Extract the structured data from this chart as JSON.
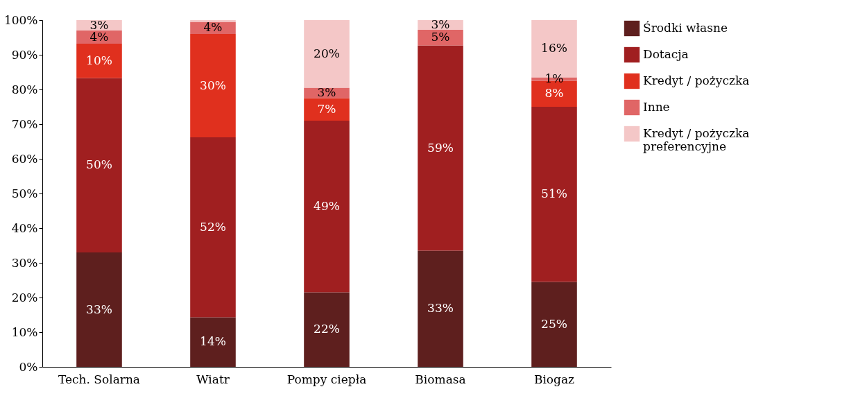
{
  "chart_data": {
    "type": "bar",
    "stacked": true,
    "categories": [
      "Tech. Solarna",
      "Wiatr",
      "Pompy ciepła",
      "Biomasa",
      "Biogaz"
    ],
    "series": [
      {
        "name": "Środki własne",
        "color": "#5e1f1e",
        "values": [
          33,
          14.3,
          21.5,
          33.5,
          24.5
        ],
        "value_labels": [
          "33%",
          "14%",
          "22%",
          "33%",
          "25%"
        ]
      },
      {
        "name": "Dotacja",
        "color": "#a01f20",
        "values": [
          50.3,
          51.9,
          49.5,
          59.2,
          50.5
        ],
        "value_labels": [
          "50%",
          "52%",
          "49%",
          "59%",
          "51%"
        ]
      },
      {
        "name": "Kredyt / pożyczka",
        "color": "#e0301e",
        "values": [
          9.9,
          29.8,
          6.5,
          0,
          7.5
        ],
        "value_labels": [
          "10%",
          "30%",
          "7%",
          null,
          "8%"
        ]
      },
      {
        "name": "Inne",
        "color": "#e06666",
        "values": [
          3.8,
          3.5,
          3,
          4.5,
          1
        ],
        "value_labels": [
          "4%",
          "4%",
          "3%",
          "5%",
          "1%"
        ]
      },
      {
        "name": "Kredyt / pożyczka preferencyjne",
        "color": "#f4c7c7",
        "values": [
          3,
          0.5,
          19.5,
          2.8,
          16.5
        ],
        "value_labels": [
          "3%",
          null,
          "20%",
          "3%",
          "16%"
        ]
      }
    ],
    "ylim": [
      0,
      100
    ],
    "yticks": [
      {
        "value": 0,
        "label": "0%"
      },
      {
        "value": 10,
        "label": "10%"
      },
      {
        "value": 20,
        "label": "20%"
      },
      {
        "value": 30,
        "label": "30%"
      },
      {
        "value": 40,
        "label": "40%"
      },
      {
        "value": 50,
        "label": "50%"
      },
      {
        "value": 60,
        "label": "60%"
      },
      {
        "value": 70,
        "label": "70%"
      },
      {
        "value": 80,
        "label": "80%"
      },
      {
        "value": 90,
        "label": "90%"
      },
      {
        "value": 100,
        "label": "100%"
      }
    ],
    "grid": false,
    "legend": "right"
  }
}
